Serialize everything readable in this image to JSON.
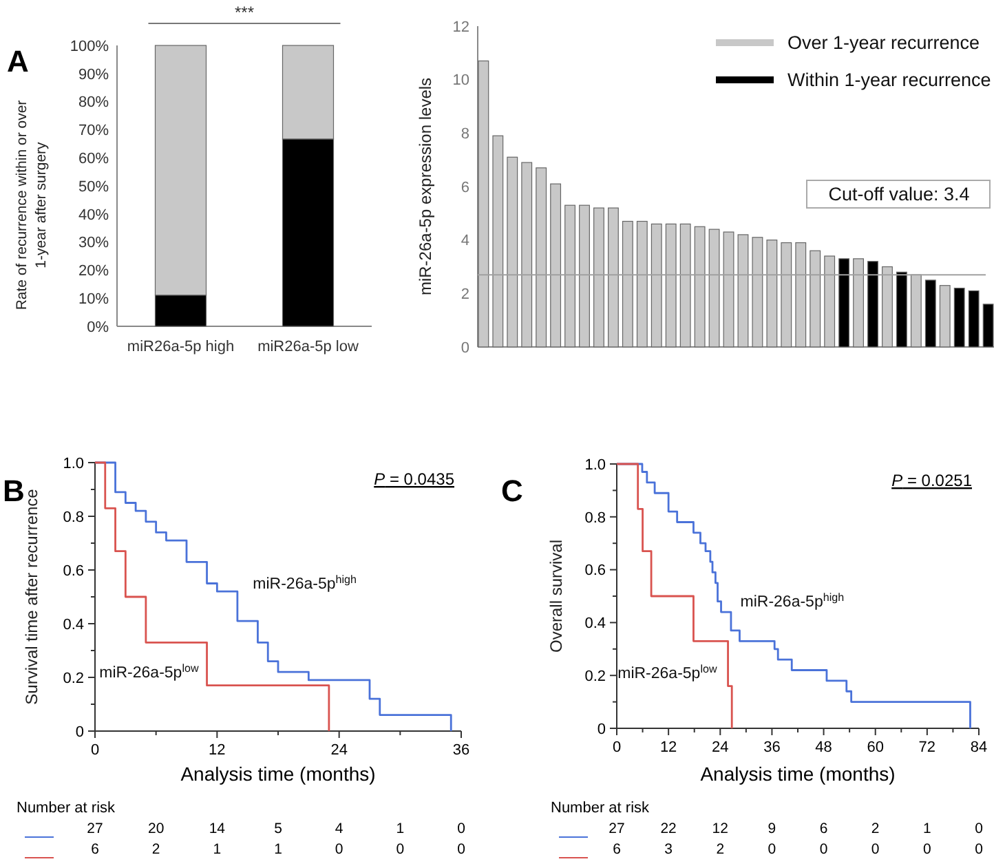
{
  "chart_data": [
    {
      "type": "bar",
      "stacked": true,
      "categories": [
        "miR26a-5p high",
        "miR26a-5p low"
      ],
      "series": [
        {
          "color": "#000000",
          "values": [
            11.1,
            66.7
          ]
        },
        {
          "color": "#c8c8c8",
          "values": [
            88.9,
            33.3
          ]
        }
      ],
      "ylabel": "Rate of recurrence within or over 1-year after surgery",
      "ylim": [
        0,
        100
      ],
      "yticks": [
        {
          "value": 0,
          "label": "0%"
        },
        {
          "value": 10,
          "label": "10%"
        },
        {
          "value": 20,
          "label": "20%"
        },
        {
          "value": 30,
          "label": "30%"
        },
        {
          "value": 40,
          "label": "40%"
        },
        {
          "value": 50,
          "label": "50%"
        },
        {
          "value": 60,
          "label": "60%"
        },
        {
          "value": 70,
          "label": "70%"
        },
        {
          "value": 80,
          "label": "80%"
        },
        {
          "value": 90,
          "label": "90%"
        },
        {
          "value": 100,
          "label": "100%"
        }
      ],
      "annotations": [
        "A",
        "***"
      ]
    },
    {
      "type": "bar",
      "categories": [
        null,
        null,
        null,
        null,
        null,
        null,
        null,
        null,
        null,
        null,
        null,
        null,
        null,
        null,
        null,
        null,
        null,
        null,
        null,
        null,
        null,
        null,
        null,
        null,
        null,
        null,
        null,
        null,
        null,
        null,
        null,
        null,
        null,
        null,
        null,
        null
      ],
      "series": [
        {
          "name": "Over 1-year recurrence",
          "color": "#c8c8c8",
          "values": [
            10.7,
            7.9,
            7.1,
            6.9,
            6.7,
            6.1,
            5.3,
            5.3,
            5.2,
            5.2,
            4.7,
            4.7,
            4.6,
            4.6,
            4.6,
            4.5,
            4.4,
            4.3,
            4.2,
            4.1,
            4.0,
            3.9,
            3.9,
            3.6,
            3.4,
            null,
            3.3,
            null,
            3.0,
            null,
            2.7,
            null,
            2.3,
            null,
            null,
            null
          ]
        },
        {
          "name": "Within 1-year recurrence",
          "color": "#000000",
          "values": [
            null,
            null,
            null,
            null,
            null,
            null,
            null,
            null,
            null,
            null,
            null,
            null,
            null,
            null,
            null,
            null,
            null,
            null,
            null,
            null,
            null,
            null,
            null,
            null,
            null,
            3.3,
            null,
            3.2,
            null,
            2.8,
            null,
            2.5,
            null,
            2.2,
            2.1,
            1.6
          ]
        }
      ],
      "ylabel": "miR-26a-5p expression levels",
      "ylim": [
        0,
        12
      ],
      "yticks": [
        0,
        2,
        4,
        6,
        8,
        10,
        12
      ],
      "ref_lines": [
        {
          "axis": "y",
          "value": 2.7,
          "color": "#a0a0a0"
        }
      ],
      "annotations": [
        "Cut-off value: 3.4"
      ],
      "legend": "top right"
    },
    {
      "type": "step",
      "xlabel": "Analysis time (months)",
      "ylabel": "Survival time after recurrence",
      "xlim": [
        0,
        36
      ],
      "xticks": [
        0,
        {
          "value": 6,
          "label": null
        },
        12,
        {
          "value": 18,
          "label": null
        },
        24,
        {
          "value": 30,
          "label": null
        },
        36
      ],
      "ylim": [
        0,
        1
      ],
      "yticks": [
        0,
        {
          "value": 0.1,
          "label": null
        },
        0.2,
        {
          "value": 0.3,
          "label": null
        },
        0.4,
        {
          "value": 0.5,
          "label": null
        },
        0.6,
        {
          "value": 0.7,
          "label": null
        },
        0.8,
        {
          "value": 0.9,
          "label": null
        },
        {
          "value": 1,
          "label": "1.0"
        }
      ],
      "series": [
        {
          "name": "miR-26a-5p$^{high}$",
          "color": "#4a72d9",
          "x": [
            0,
            2,
            3,
            4,
            5,
            6,
            7,
            9,
            11,
            12,
            14,
            16,
            17,
            18,
            21,
            27,
            28,
            35
          ],
          "values": [
            1,
            0.89,
            0.85,
            0.82,
            0.78,
            0.74,
            0.71,
            0.63,
            0.55,
            0.52,
            0.41,
            0.33,
            0.26,
            0.22,
            0.19,
            0.12,
            0.06,
            0
          ]
        },
        {
          "name": "miR-26a-5p$^{low}$",
          "color": "#d9534f",
          "x": [
            0,
            1,
            2,
            3,
            5,
            11,
            23
          ],
          "values": [
            1,
            0.83,
            0.67,
            0.5,
            0.33,
            0.17,
            0
          ]
        }
      ],
      "annotations": [
        "B",
        "P = 0.0435",
        "Number at risk",
        "27",
        "20",
        "14",
        "5",
        "4",
        "1",
        "0",
        "6",
        "2",
        "1",
        "1",
        "0",
        "0",
        "0"
      ]
    },
    {
      "type": "step",
      "xlabel": "Analysis time (months)",
      "ylabel": "Overall survival",
      "xlim": [
        0,
        84
      ],
      "xticks": [
        0,
        {
          "value": 6,
          "label": null
        },
        12,
        {
          "value": 18,
          "label": null
        },
        24,
        {
          "value": 30,
          "label": null
        },
        36,
        {
          "value": 42,
          "label": null
        },
        48,
        {
          "value": 54,
          "label": null
        },
        60,
        {
          "value": 66,
          "label": null
        },
        72,
        {
          "value": 78,
          "label": null
        },
        84
      ],
      "ylim": [
        0,
        1
      ],
      "yticks": [
        0,
        {
          "value": 0.1,
          "label": null
        },
        0.2,
        {
          "value": 0.3,
          "label": null
        },
        0.4,
        {
          "value": 0.5,
          "label": null
        },
        0.6,
        {
          "value": 0.7,
          "label": null
        },
        0.8,
        {
          "value": 0.9,
          "label": null
        },
        {
          "value": 1,
          "label": "1.0"
        }
      ],
      "series": [
        {
          "name": "miR-26a-5p$^{high}$",
          "color": "#4a72d9",
          "x": [
            0,
            5.9,
            7,
            8.8,
            12,
            14,
            17.8,
            19.4,
            20.6,
            21.7,
            22.2,
            22.9,
            23.4,
            24.2,
            26.5,
            28.5,
            36.6,
            37.4,
            40.6,
            48.7,
            53.3,
            54.4,
            82
          ],
          "values": [
            1,
            0.97,
            0.93,
            0.89,
            0.82,
            0.78,
            0.74,
            0.7,
            0.67,
            0.63,
            0.59,
            0.55,
            0.48,
            0.44,
            0.37,
            0.33,
            0.3,
            0.26,
            0.22,
            0.18,
            0.14,
            0.1,
            0
          ]
        },
        {
          "name": "miR-26a-5p$^{low}$",
          "color": "#d9534f",
          "x": [
            0,
            4.9,
            6,
            8,
            17.8,
            25.8,
            26.7
          ],
          "values": [
            1,
            0.83,
            0.67,
            0.5,
            0.33,
            0.16,
            0
          ]
        }
      ],
      "annotations": [
        "C",
        "P = 0.0251",
        "Number at risk",
        "27",
        "22",
        "12",
        "9",
        "6",
        "2",
        "1",
        "0",
        "6",
        "3",
        "2",
        "0",
        "0",
        "0",
        "0",
        "0"
      ]
    }
  ]
}
